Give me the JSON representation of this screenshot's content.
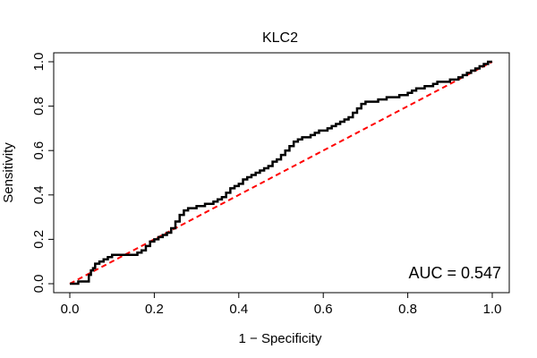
{
  "chart_data": {
    "type": "line",
    "title": "KLC2",
    "xlabel": "1 − Specificity",
    "ylabel": "Sensitivity",
    "xlim": [
      0,
      1
    ],
    "ylim": [
      0,
      1
    ],
    "x_ticks": [
      "0.0",
      "0.2",
      "0.4",
      "0.6",
      "0.8",
      "1.0"
    ],
    "y_ticks": [
      "0.0",
      "0.2",
      "0.4",
      "0.6",
      "0.8",
      "1.0"
    ],
    "annotation": "AUC = 0.547",
    "grid": false,
    "colors": {
      "roc": "#000000",
      "reference": "#ff0000"
    },
    "series": [
      {
        "style": "step",
        "x": [
          0.0,
          0.01,
          0.02,
          0.02,
          0.04,
          0.045,
          0.05,
          0.055,
          0.06,
          0.07,
          0.08,
          0.09,
          0.1,
          0.12,
          0.15,
          0.16,
          0.17,
          0.18,
          0.19,
          0.2,
          0.21,
          0.22,
          0.23,
          0.24,
          0.25,
          0.26,
          0.27,
          0.28,
          0.3,
          0.32,
          0.34,
          0.35,
          0.36,
          0.37,
          0.38,
          0.39,
          0.4,
          0.41,
          0.42,
          0.43,
          0.44,
          0.45,
          0.46,
          0.47,
          0.48,
          0.49,
          0.5,
          0.51,
          0.52,
          0.53,
          0.54,
          0.55,
          0.56,
          0.57,
          0.58,
          0.59,
          0.6,
          0.61,
          0.62,
          0.63,
          0.64,
          0.65,
          0.66,
          0.67,
          0.68,
          0.69,
          0.7,
          0.73,
          0.75,
          0.78,
          0.8,
          0.81,
          0.82,
          0.84,
          0.86,
          0.87,
          0.9,
          0.92,
          0.93,
          0.94,
          0.95,
          0.96,
          0.97,
          0.98,
          0.99,
          1.0
        ],
        "y": [
          0.0,
          0.0,
          0.01,
          0.01,
          0.01,
          0.04,
          0.06,
          0.07,
          0.09,
          0.1,
          0.11,
          0.12,
          0.13,
          0.13,
          0.13,
          0.14,
          0.15,
          0.17,
          0.19,
          0.2,
          0.21,
          0.22,
          0.23,
          0.25,
          0.28,
          0.31,
          0.33,
          0.34,
          0.35,
          0.36,
          0.37,
          0.38,
          0.39,
          0.41,
          0.43,
          0.44,
          0.45,
          0.47,
          0.48,
          0.49,
          0.5,
          0.51,
          0.52,
          0.53,
          0.55,
          0.56,
          0.58,
          0.6,
          0.62,
          0.64,
          0.65,
          0.66,
          0.66,
          0.67,
          0.68,
          0.69,
          0.69,
          0.7,
          0.71,
          0.72,
          0.73,
          0.74,
          0.75,
          0.77,
          0.79,
          0.81,
          0.82,
          0.83,
          0.84,
          0.85,
          0.86,
          0.87,
          0.88,
          0.89,
          0.9,
          0.91,
          0.92,
          0.93,
          0.94,
          0.95,
          0.96,
          0.97,
          0.98,
          0.99,
          1.0,
          1.0
        ]
      }
    ]
  }
}
